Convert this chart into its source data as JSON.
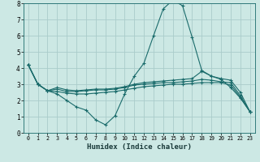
{
  "xlabel": "Humidex (Indice chaleur)",
  "xlim": [
    -0.5,
    23.5
  ],
  "ylim": [
    0,
    8
  ],
  "xticks": [
    0,
    1,
    2,
    3,
    4,
    5,
    6,
    7,
    8,
    9,
    10,
    11,
    12,
    13,
    14,
    15,
    16,
    17,
    18,
    19,
    20,
    21,
    22,
    23
  ],
  "yticks": [
    0,
    1,
    2,
    3,
    4,
    5,
    6,
    7,
    8
  ],
  "bg_color": "#cce8e4",
  "grid_color": "#aaccca",
  "line_color": "#1a6b6b",
  "line1_x": [
    0,
    1,
    2,
    3,
    4,
    5,
    6,
    7,
    8,
    9,
    10,
    11,
    12,
    13,
    14,
    15,
    16,
    17,
    18,
    19,
    20,
    21,
    22,
    23
  ],
  "line1_y": [
    4.2,
    3.0,
    2.6,
    2.4,
    2.0,
    1.6,
    1.4,
    0.8,
    0.5,
    1.05,
    2.4,
    3.5,
    4.3,
    6.0,
    7.65,
    8.2,
    7.85,
    5.9,
    3.85,
    3.5,
    3.3,
    2.8,
    2.15,
    1.3
  ],
  "line2_x": [
    0,
    1,
    2,
    3,
    4,
    5,
    6,
    7,
    8,
    9,
    10,
    11,
    12,
    13,
    14,
    15,
    16,
    17,
    18,
    19,
    20,
    21,
    22,
    23
  ],
  "line2_y": [
    4.2,
    3.0,
    2.6,
    2.8,
    2.65,
    2.6,
    2.65,
    2.7,
    2.7,
    2.75,
    2.85,
    3.0,
    3.1,
    3.15,
    3.2,
    3.25,
    3.3,
    3.35,
    3.8,
    3.5,
    3.35,
    3.25,
    2.5,
    1.3
  ],
  "line3_x": [
    0,
    1,
    2,
    3,
    4,
    5,
    6,
    7,
    8,
    9,
    10,
    11,
    12,
    13,
    14,
    15,
    16,
    17,
    18,
    19,
    20,
    21,
    22,
    23
  ],
  "line3_y": [
    4.2,
    3.0,
    2.6,
    2.7,
    2.55,
    2.55,
    2.6,
    2.65,
    2.65,
    2.7,
    2.8,
    2.95,
    3.0,
    3.05,
    3.1,
    3.1,
    3.15,
    3.2,
    3.3,
    3.25,
    3.15,
    3.1,
    2.3,
    1.3
  ],
  "line4_x": [
    0,
    1,
    2,
    3,
    4,
    5,
    6,
    7,
    8,
    9,
    10,
    11,
    12,
    13,
    14,
    15,
    16,
    17,
    18,
    19,
    20,
    21,
    22,
    23
  ],
  "line4_y": [
    4.2,
    3.0,
    2.6,
    2.55,
    2.45,
    2.4,
    2.4,
    2.45,
    2.5,
    2.55,
    2.65,
    2.75,
    2.85,
    2.9,
    2.95,
    3.0,
    3.0,
    3.05,
    3.1,
    3.1,
    3.1,
    2.95,
    2.2,
    1.3
  ]
}
